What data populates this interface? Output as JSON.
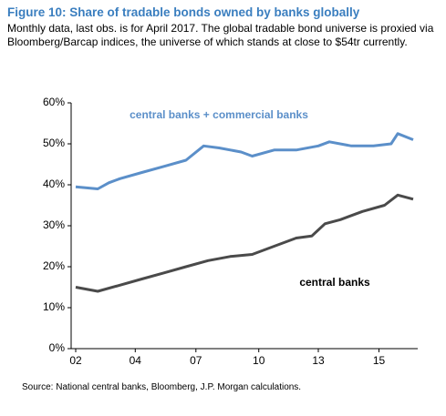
{
  "chart_data": {
    "type": "line",
    "title": "Figure 10: Share of tradable bonds owned by banks globally",
    "subtitle": "Monthly data, last obs. is for April 2017. The global tradable bond universe is proxied via Bloomberg/Barcap indices, the universe of which stands at close to $54tr currently.",
    "source": "Source: National central banks, Bloomberg, J.P. Morgan calculations.",
    "xlim": [
      2002,
      2017.3
    ],
    "xticks": [
      {
        "value": 2002,
        "label": "02"
      },
      {
        "value": 2004.7,
        "label": "04"
      },
      {
        "value": 2007.45,
        "label": "07"
      },
      {
        "value": 2010.3,
        "label": "10"
      },
      {
        "value": 2013,
        "label": "13"
      },
      {
        "value": 2015.75,
        "label": "15"
      }
    ],
    "ylim": [
      0,
      60
    ],
    "yticks": [
      {
        "value": 0,
        "label": "0%"
      },
      {
        "value": 10,
        "label": "10%"
      },
      {
        "value": 20,
        "label": "20%"
      },
      {
        "value": 30,
        "label": "30%"
      },
      {
        "value": 40,
        "label": "40%"
      },
      {
        "value": 50,
        "label": "50%"
      },
      {
        "value": 60,
        "label": "60%"
      }
    ],
    "series": [
      {
        "name": "central banks + commercial banks",
        "color": "#5b8fc9",
        "x": [
          2002,
          2003,
          2003.5,
          2004,
          2005,
          2006,
          2007,
          2007.8,
          2008.5,
          2009.5,
          2010,
          2011,
          2012,
          2013,
          2013.5,
          2014.5,
          2015.5,
          2016.3,
          2016.6,
          2017.3
        ],
        "values": [
          39.5,
          39,
          40.5,
          41.5,
          43,
          44.5,
          46,
          49.5,
          49,
          48,
          47,
          48.5,
          48.5,
          49.5,
          50.5,
          49.5,
          49.5,
          50,
          52.5,
          51
        ]
      },
      {
        "name": "central banks",
        "color": "#4a4a4a",
        "x": [
          2002,
          2003,
          2004,
          2005,
          2006,
          2007,
          2008,
          2009,
          2010,
          2011,
          2012,
          2012.7,
          2013.3,
          2014,
          2015,
          2016,
          2016.6,
          2017.3
        ],
        "values": [
          15,
          14,
          15.5,
          17,
          18.5,
          20,
          21.5,
          22.5,
          23,
          25,
          27,
          27.5,
          30.5,
          31.5,
          33.5,
          35,
          37.5,
          36.5
        ]
      }
    ]
  }
}
